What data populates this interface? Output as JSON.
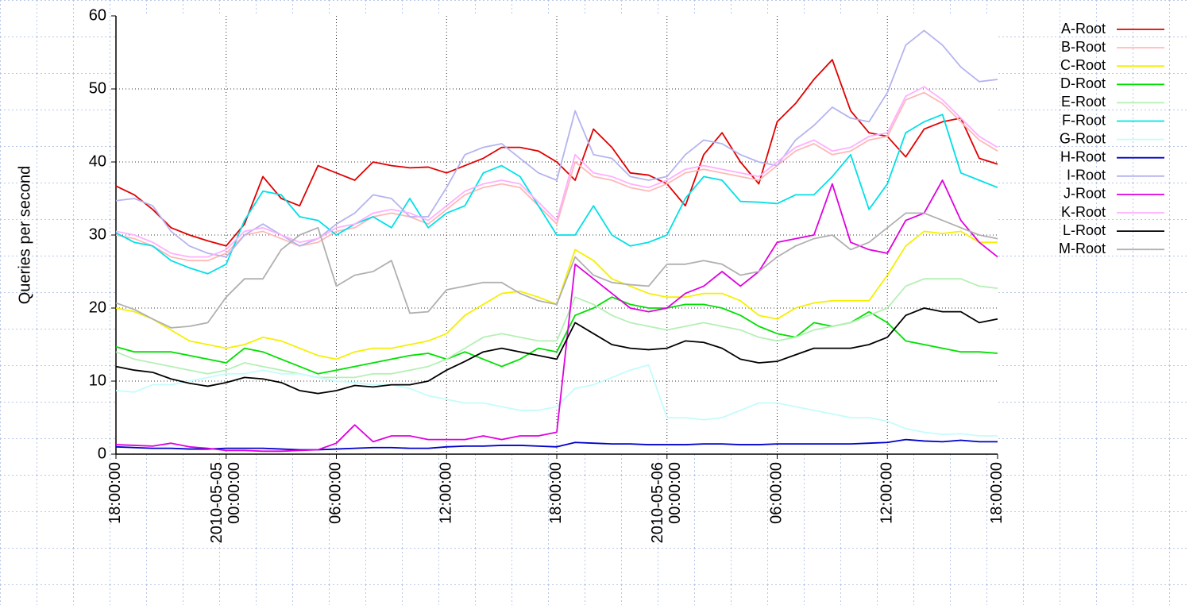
{
  "chart_data": {
    "type": "line",
    "y_label": "Queries per second",
    "x": [
      "2010-05-04T18:00",
      "2010-05-04T19:00",
      "2010-05-04T20:00",
      "2010-05-04T21:00",
      "2010-05-04T22:00",
      "2010-05-04T23:00",
      "2010-05-05T00:00",
      "2010-05-05T01:00",
      "2010-05-05T02:00",
      "2010-05-05T03:00",
      "2010-05-05T04:00",
      "2010-05-05T05:00",
      "2010-05-05T06:00",
      "2010-05-05T07:00",
      "2010-05-05T08:00",
      "2010-05-05T09:00",
      "2010-05-05T10:00",
      "2010-05-05T11:00",
      "2010-05-05T12:00",
      "2010-05-05T13:00",
      "2010-05-05T14:00",
      "2010-05-05T15:00",
      "2010-05-05T16:00",
      "2010-05-05T17:00",
      "2010-05-05T18:00",
      "2010-05-05T19:00",
      "2010-05-05T20:00",
      "2010-05-05T21:00",
      "2010-05-05T22:00",
      "2010-05-05T23:00",
      "2010-05-06T00:00",
      "2010-05-06T01:00",
      "2010-05-06T02:00",
      "2010-05-06T03:00",
      "2010-05-06T04:00",
      "2010-05-06T05:00",
      "2010-05-06T06:00",
      "2010-05-06T07:00",
      "2010-05-06T08:00",
      "2010-05-06T09:00",
      "2010-05-06T10:00",
      "2010-05-06T11:00",
      "2010-05-06T12:00",
      "2010-05-06T13:00",
      "2010-05-06T14:00",
      "2010-05-06T15:00",
      "2010-05-06T16:00",
      "2010-05-06T17:00",
      "2010-05-06T18:00"
    ],
    "xlim": [
      "2010-05-04T18:00",
      "2010-05-06T18:00"
    ],
    "xticks": [
      {
        "value": "2010-05-04T18:00",
        "label": "18:00:00"
      },
      {
        "value": "2010-05-05T00:00",
        "label": "2010-05-05\n00:00:00"
      },
      {
        "value": "2010-05-05T06:00",
        "label": "06:00:00"
      },
      {
        "value": "2010-05-05T12:00",
        "label": "12:00:00"
      },
      {
        "value": "2010-05-05T18:00",
        "label": "18:00:00"
      },
      {
        "value": "2010-05-06T00:00",
        "label": "2010-05-06\n00:00:00"
      },
      {
        "value": "2010-05-06T06:00",
        "label": "06:00:00"
      },
      {
        "value": "2010-05-06T12:00",
        "label": "12:00:00"
      },
      {
        "value": "2010-05-06T18:00",
        "label": "18:00:00"
      }
    ],
    "ylim": [
      0,
      60
    ],
    "yticks": [
      0,
      10,
      20,
      30,
      40,
      50,
      60
    ],
    "grid": true,
    "legend": "right",
    "series": [
      {
        "name": "A-Root",
        "color": "#e00000",
        "values": [
          36.7,
          35.5,
          33.5,
          31,
          30,
          29.2,
          28.5,
          31.5,
          38,
          35,
          34,
          39.5,
          38.5,
          37.5,
          40,
          39.5,
          39.2,
          39.3,
          38.5,
          39.5,
          40.5,
          42,
          42,
          41.5,
          40,
          37.5,
          44.5,
          42,
          38.5,
          38.2,
          37,
          34,
          41,
          44,
          40,
          37,
          45.5,
          48,
          51.3,
          54,
          47,
          44,
          43.5,
          40.7,
          44.5,
          45.5,
          46,
          40.5,
          39.7
        ]
      },
      {
        "name": "B-Root",
        "color": "#ffb8b8",
        "values": [
          30,
          29.5,
          28.5,
          27,
          26.5,
          26.5,
          27.5,
          30,
          30.5,
          29.5,
          28.5,
          29,
          30.5,
          31,
          32.5,
          33,
          32.5,
          31.5,
          33.5,
          35.5,
          36.5,
          37,
          36.5,
          34,
          31.5,
          40,
          38,
          37.5,
          36.5,
          36,
          37,
          38.5,
          39,
          38.5,
          38,
          37.5,
          39.5,
          41.5,
          42.5,
          41,
          41.5,
          43,
          43.5,
          48.5,
          49.5,
          48,
          45.5,
          43,
          41.5
        ]
      },
      {
        "name": "C-Root",
        "color": "#f5f000",
        "values": [
          20,
          19.5,
          18.5,
          17,
          15.5,
          15,
          14.5,
          15,
          16,
          15.5,
          14.5,
          13.5,
          13,
          14,
          14.5,
          14.5,
          15,
          15.5,
          16.5,
          19,
          20.5,
          22,
          22.3,
          21.5,
          20.5,
          28,
          26.5,
          24,
          23,
          22,
          21.5,
          21.5,
          22,
          22,
          21,
          19,
          18.5,
          20,
          20.7,
          21,
          21,
          21,
          24.5,
          28.5,
          30.5,
          30.2,
          30.5,
          29,
          29
        ]
      },
      {
        "name": "D-Root",
        "color": "#00e000",
        "values": [
          14.7,
          14,
          14,
          14,
          13.5,
          13,
          12.5,
          14.5,
          14,
          13,
          12,
          11,
          11.5,
          12,
          12.5,
          13,
          13.5,
          13.8,
          13,
          14,
          13,
          12,
          13,
          14.5,
          14,
          19,
          20,
          21.5,
          20.5,
          20,
          20,
          20.5,
          20.5,
          20,
          19,
          17.5,
          16.5,
          16,
          18,
          17.5,
          18,
          19.5,
          18,
          15.5,
          15,
          14.5,
          14,
          14,
          13.8
        ]
      },
      {
        "name": "E-Root",
        "color": "#b4f0b4",
        "values": [
          14,
          13,
          12.5,
          12,
          11.5,
          11,
          11.5,
          12.5,
          12,
          11.5,
          11,
          10.5,
          10.5,
          10.5,
          11,
          11,
          11.5,
          12,
          13,
          14.5,
          16,
          16.5,
          16,
          15.5,
          15.5,
          21.5,
          20.5,
          19,
          18,
          17.5,
          17,
          17.5,
          18,
          17.5,
          17,
          16,
          15.5,
          16,
          17,
          17.5,
          18,
          19,
          20,
          23,
          24,
          24,
          24,
          23,
          22.7
        ]
      },
      {
        "name": "F-Root",
        "color": "#00e0e8",
        "values": [
          30.3,
          29,
          28.5,
          26.5,
          25.5,
          24.7,
          26,
          32,
          36,
          35.5,
          32.5,
          32,
          30,
          31.5,
          32.5,
          31,
          35,
          31,
          33,
          34,
          38.5,
          39.5,
          38,
          34,
          30,
          30,
          34,
          30,
          28.5,
          29,
          30,
          35,
          38,
          37.5,
          34.6,
          34.5,
          34.3,
          35.5,
          35.5,
          38,
          41,
          33.5,
          37,
          44,
          45.5,
          46.5,
          38.5,
          37.5,
          36.5
        ]
      },
      {
        "name": "G-Root",
        "color": "#c4fcfc",
        "values": [
          8.7,
          8.5,
          9.5,
          9.5,
          10,
          10.5,
          11,
          11,
          11.5,
          11,
          11,
          10.5,
          10,
          9.8,
          9.5,
          9.5,
          9,
          8,
          7.5,
          7,
          7,
          6.5,
          6,
          6,
          6.5,
          9,
          9.5,
          10.5,
          11.5,
          12.2,
          5,
          5,
          4.7,
          5,
          6,
          7,
          7,
          6.5,
          6,
          5.5,
          5,
          5,
          4.5,
          3.5,
          3,
          2.7,
          2.8,
          2.5,
          2.5
        ]
      },
      {
        "name": "H-Root",
        "color": "#0000cc",
        "values": [
          1,
          0.9,
          0.8,
          0.8,
          0.7,
          0.7,
          0.8,
          0.8,
          0.8,
          0.7,
          0.6,
          0.6,
          0.7,
          0.8,
          0.9,
          0.9,
          0.8,
          0.8,
          1,
          1.1,
          1.1,
          1.2,
          1.2,
          1.1,
          1,
          1.6,
          1.5,
          1.4,
          1.4,
          1.3,
          1.3,
          1.3,
          1.4,
          1.4,
          1.3,
          1.3,
          1.4,
          1.4,
          1.4,
          1.4,
          1.4,
          1.5,
          1.6,
          2,
          1.8,
          1.7,
          1.9,
          1.7,
          1.7
        ]
      },
      {
        "name": "I-Root",
        "color": "#b4b4f0",
        "values": [
          34.7,
          35,
          34,
          30.5,
          28.5,
          27.5,
          27,
          30,
          31.5,
          30,
          28.5,
          29.5,
          31.5,
          33,
          35.5,
          35,
          32.5,
          32.5,
          36.5,
          41,
          42,
          42.5,
          40.5,
          38.5,
          37.5,
          47,
          41,
          40.5,
          38,
          37.5,
          38,
          41,
          43,
          42.5,
          41,
          40,
          39.5,
          43,
          45,
          47.5,
          46,
          45.5,
          49.5,
          56,
          58,
          56,
          53,
          51,
          51.3
        ]
      },
      {
        "name": "J-Root",
        "color": "#e000e0",
        "values": [
          1.3,
          1.2,
          1.1,
          1.5,
          1,
          0.8,
          0.5,
          0.5,
          0.4,
          0.4,
          0.5,
          0.6,
          1.5,
          4,
          1.7,
          2.5,
          2.5,
          2,
          2,
          2,
          2.5,
          2,
          2.5,
          2.5,
          3,
          26,
          24,
          22,
          20,
          19.5,
          20,
          22,
          23,
          25,
          23,
          25,
          29,
          29.5,
          30,
          37,
          29,
          28,
          27.5,
          32,
          33,
          37.5,
          32,
          29,
          27
        ]
      },
      {
        "name": "K-Root",
        "color": "#ffb0ff",
        "values": [
          30.5,
          30,
          29,
          27.5,
          27,
          27,
          28,
          30.5,
          31,
          30,
          29,
          29.5,
          31,
          31.5,
          33,
          33.5,
          33,
          32,
          34,
          36,
          37,
          37.5,
          37,
          34.5,
          32,
          41,
          38.5,
          38,
          37,
          36.5,
          37.5,
          39,
          39.5,
          39,
          38.5,
          38,
          40,
          42,
          43,
          41.5,
          42,
          43.5,
          44,
          49,
          50.3,
          48.5,
          46,
          43.5,
          42
        ]
      },
      {
        "name": "L-Root",
        "color": "#000000",
        "values": [
          12,
          11.5,
          11.2,
          10.3,
          9.7,
          9.3,
          9.8,
          10.5,
          10.3,
          9.8,
          8.7,
          8.3,
          8.7,
          9.4,
          9.2,
          9.5,
          9.5,
          10,
          11.5,
          12.7,
          14,
          14.5,
          14,
          13.5,
          13,
          18,
          16.5,
          15,
          14.5,
          14.3,
          14.5,
          15.5,
          15.3,
          14.5,
          13,
          12.5,
          12.7,
          13.6,
          14.5,
          14.5,
          14.5,
          15,
          16,
          19,
          20,
          19.5,
          19.5,
          18,
          18.5
        ]
      },
      {
        "name": "M-Root",
        "color": "#b0b0b0",
        "values": [
          20.7,
          19.8,
          18.5,
          17.3,
          17.5,
          18,
          21.5,
          24,
          24,
          28,
          30,
          31,
          23,
          24.5,
          25,
          26.5,
          19.3,
          19.5,
          22.5,
          23,
          23.5,
          23.5,
          22,
          21,
          20.5,
          27,
          24.5,
          23.5,
          23.2,
          23,
          26,
          26,
          26.5,
          26,
          24.5,
          25,
          27,
          28.5,
          29.5,
          30,
          28,
          29,
          31,
          33,
          33,
          32,
          31,
          30,
          29.5
        ]
      }
    ]
  }
}
